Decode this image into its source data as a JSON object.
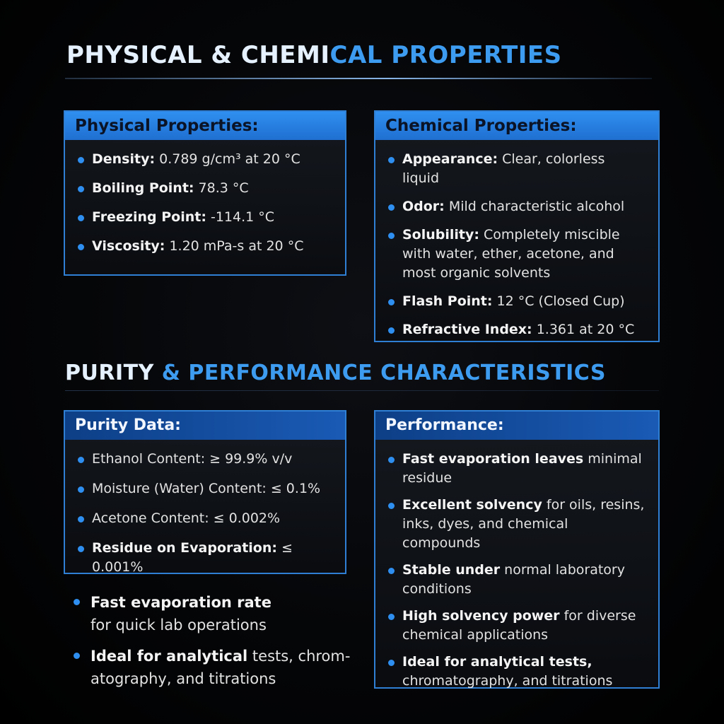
{
  "section1": {
    "title_a": "PHYSICAL & CHEMI",
    "title_b": "CAL PROPERTIES"
  },
  "physical": {
    "header": "Physical Properties:",
    "items": [
      {
        "key": "Density:",
        "value": " 0.789 g/cm³ at 20 °C"
      },
      {
        "key": "Boiling Point:",
        "value": " 78.3 °C"
      },
      {
        "key": "Freezing Point:",
        "value": " -114.1 °C"
      },
      {
        "key": "Viscosity:",
        "value": " 1.20 mPa-s at 20 °C"
      }
    ]
  },
  "chemical": {
    "header": "Chemical Properties:",
    "items": [
      {
        "key": "Appearance:",
        "value": " Clear, colorless liquid"
      },
      {
        "key": "Odor:",
        "value": " Mild characteristic alcohol"
      },
      {
        "key": "Solubility:",
        "value": " Completely miscible with water, ether, acetone, and most organic solvents"
      },
      {
        "key": "Flash Point:",
        "value": " 12 °C (Closed Cup)"
      },
      {
        "key": "Refractive Index:",
        "value": " 1.361 at 20 °C"
      }
    ]
  },
  "section2": {
    "title_a": "PURITY ",
    "title_b": "& PERFORMANCE CHARACTERISTICS"
  },
  "purity": {
    "header": "Purity Data:",
    "items": [
      {
        "key": "Ethanol Content:",
        "value": " ≥ 99.9% v/v"
      },
      {
        "key": "Moisture (Water) Content:",
        "value": " ≤ 0.1%"
      },
      {
        "key": "Acetone Content:",
        "value": " ≤ 0.002%"
      },
      {
        "key": "Residue on Evaporation:",
        "value": " ≤ 0.001%"
      }
    ]
  },
  "performance": {
    "header": "Performance:",
    "items": [
      {
        "key": "Fast evaporation leaves",
        "value": " minimal residue"
      },
      {
        "key": "Excellent solvency",
        "value": " for oils, resins, inks, dyes, and chemical compounds"
      },
      {
        "key": "Stable under",
        "value": " normal laboratory conditions"
      },
      {
        "key": "High solvency power",
        "value": " for diverse chemical applications"
      },
      {
        "key": "Ideal for analytical tests,",
        "value": " chromatography, and titrations"
      }
    ]
  },
  "extra": {
    "items": [
      {
        "key": "Fast evaporation rate",
        "value": " for quick lab operations"
      },
      {
        "key": "Ideal for analytical",
        "value": " tests, chrom-atography, and titrations"
      }
    ]
  }
}
